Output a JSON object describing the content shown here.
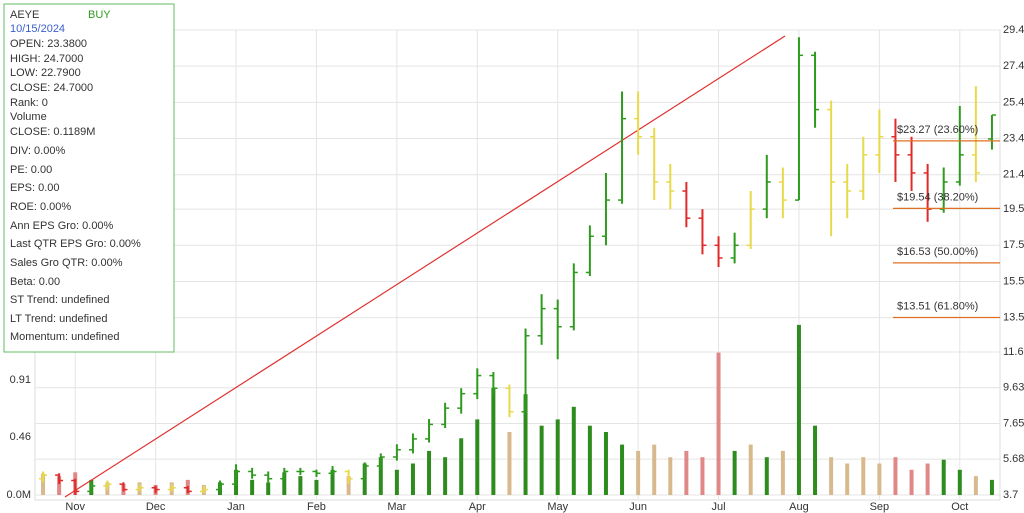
{
  "chart_data": {
    "type": "ohlc",
    "info_box": [
      "AEYE",
      "BUY",
      "10/15/2024",
      "OPEN: 23.3800",
      "HIGH: 24.7000",
      "LOW: 22.7900",
      "CLOSE: 24.7000",
      "Rank: 0",
      "Volume",
      "CLOSE: 0.1189M",
      "DIV: 0.00%",
      "PE: 0.00",
      "EPS: 0.00",
      "ROE: 0.00%",
      "Ann EPS Gro: 0.00%",
      "Last QTR EPS Gro: 0.00%",
      "Sales Gro QTR: 0.00%",
      "Beta: 0.00",
      "ST Trend: undefined",
      "LT Trend: undefined",
      "Momentum: undefined"
    ],
    "categories": [
      null,
      null,
      "Nov",
      null,
      null,
      null,
      null,
      "Dec",
      null,
      null,
      null,
      null,
      "Jan",
      null,
      null,
      null,
      null,
      "Feb",
      null,
      null,
      null,
      null,
      "Mar",
      null,
      null,
      null,
      null,
      "Apr",
      null,
      null,
      null,
      null,
      "May",
      null,
      null,
      null,
      null,
      "Jun",
      null,
      null,
      null,
      null,
      "Jul",
      null,
      null,
      null,
      null,
      "Aug",
      null,
      null,
      null,
      null,
      "Sep",
      null,
      null,
      null,
      null,
      "Oct",
      null,
      null
    ],
    "ohlc": [
      [
        4.6,
        5.0,
        4.4,
        4.8
      ],
      [
        4.8,
        4.9,
        4.3,
        4.5
      ],
      [
        4.5,
        4.6,
        3.7,
        3.9
      ],
      [
        3.9,
        4.4,
        3.8,
        4.2
      ],
      [
        4.2,
        4.5,
        4.0,
        4.3
      ],
      [
        4.3,
        4.4,
        3.9,
        4.0
      ],
      [
        4.0,
        4.3,
        3.9,
        4.1
      ],
      [
        4.1,
        4.2,
        3.8,
        4.0
      ],
      [
        4.0,
        4.3,
        3.9,
        4.1
      ],
      [
        4.1,
        4.2,
        3.8,
        3.9
      ],
      [
        3.9,
        4.2,
        3.8,
        4.0
      ],
      [
        4.0,
        4.5,
        3.9,
        4.3
      ],
      [
        4.3,
        5.4,
        4.2,
        5.0
      ],
      [
        5.0,
        5.2,
        4.6,
        4.8
      ],
      [
        4.8,
        5.0,
        4.4,
        4.6
      ],
      [
        4.6,
        5.2,
        4.5,
        5.0
      ],
      [
        5.0,
        5.2,
        4.8,
        5.0
      ],
      [
        5.0,
        5.1,
        4.7,
        4.9
      ],
      [
        4.9,
        5.3,
        4.8,
        5.0
      ],
      [
        5.0,
        5.1,
        4.3,
        4.6
      ],
      [
        4.6,
        5.5,
        4.5,
        5.3
      ],
      [
        5.3,
        6.0,
        5.1,
        5.8
      ],
      [
        5.8,
        6.5,
        5.6,
        6.2
      ],
      [
        6.2,
        7.1,
        6.0,
        6.8
      ],
      [
        6.8,
        7.9,
        6.6,
        7.6
      ],
      [
        7.6,
        8.8,
        7.4,
        8.5
      ],
      [
        8.5,
        9.6,
        8.2,
        9.3
      ],
      [
        9.3,
        10.7,
        9.0,
        10.3
      ],
      [
        10.3,
        10.5,
        9.2,
        9.6
      ],
      [
        9.6,
        9.8,
        8.0,
        8.3
      ],
      [
        8.3,
        12.9,
        8.2,
        12.5
      ],
      [
        12.5,
        14.8,
        12.0,
        14.0
      ],
      [
        14.0,
        14.5,
        11.2,
        13.0
      ],
      [
        13.0,
        16.5,
        12.8,
        16.0
      ],
      [
        16.0,
        18.6,
        15.8,
        18.0
      ],
      [
        18.0,
        21.5,
        17.5,
        20.0
      ],
      [
        20.0,
        26.0,
        19.8,
        24.5
      ],
      [
        24.5,
        26.0,
        22.5,
        23.5
      ],
      [
        23.5,
        24.0,
        20.0,
        21.0
      ],
      [
        21.0,
        22.0,
        19.5,
        20.5
      ],
      [
        20.5,
        21.0,
        18.5,
        19.0
      ],
      [
        19.0,
        19.5,
        17.0,
        17.5
      ],
      [
        17.5,
        18.0,
        16.3,
        16.8
      ],
      [
        16.8,
        18.2,
        16.5,
        17.5
      ],
      [
        17.5,
        20.5,
        17.3,
        19.5
      ],
      [
        19.5,
        22.5,
        19.0,
        21.0
      ],
      [
        21.0,
        21.8,
        19.0,
        20.0
      ],
      [
        20.0,
        29.0,
        20.0,
        28.0
      ],
      [
        28.0,
        28.2,
        24.0,
        25.0
      ],
      [
        25.0,
        25.5,
        18.0,
        21.0
      ],
      [
        21.0,
        22.0,
        19.0,
        20.5
      ],
      [
        20.5,
        23.5,
        20.0,
        22.5
      ],
      [
        22.5,
        25.0,
        21.5,
        23.5
      ],
      [
        23.5,
        24.5,
        21.0,
        22.5
      ],
      [
        22.5,
        23.5,
        20.5,
        21.5
      ],
      [
        21.5,
        22.0,
        18.8,
        19.5
      ],
      [
        19.5,
        21.8,
        19.3,
        21.0
      ],
      [
        21.0,
        25.2,
        20.8,
        22.5
      ],
      [
        22.5,
        26.3,
        21.0,
        21.5
      ],
      [
        23.38,
        24.7,
        22.79,
        24.7
      ]
    ],
    "bar_colors": [
      "#e8d94a",
      "#e02a2a",
      "#e02a2a",
      "#2e9a1e",
      "#e8d94a",
      "#e02a2a",
      "#e8d94a",
      "#e02a2a",
      "#e8d94a",
      "#e02a2a",
      "#e8d94a",
      "#2e9a1e",
      "#2e9a1e",
      "#2e9a1e",
      "#2e9a1e",
      "#2e9a1e",
      "#2e9a1e",
      "#2e9a1e",
      "#2e9a1e",
      "#e8d94a",
      "#2e9a1e",
      "#2e9a1e",
      "#2e9a1e",
      "#2e9a1e",
      "#2e9a1e",
      "#2e9a1e",
      "#2e9a1e",
      "#2e9a1e",
      "#2e9a1e",
      "#e8d94a",
      "#2e9a1e",
      "#2e9a1e",
      "#2e9a1e",
      "#2e9a1e",
      "#2e9a1e",
      "#2e9a1e",
      "#2e9a1e",
      "#e8d94a",
      "#e8d94a",
      "#e8d94a",
      "#e02a2a",
      "#e02a2a",
      "#e02a2a",
      "#2e9a1e",
      "#e8d94a",
      "#2e9a1e",
      "#e8d94a",
      "#2e9a1e",
      "#2e9a1e",
      "#e8d94a",
      "#e8d94a",
      "#e8d94a",
      "#e8d94a",
      "#e02a2a",
      "#e02a2a",
      "#e02a2a",
      "#2e9a1e",
      "#2e9a1e",
      "#e8d94a",
      "#2e9a1e"
    ],
    "volume": [
      0.17,
      0.15,
      0.18,
      0.12,
      0.1,
      0.09,
      0.1,
      0.08,
      0.1,
      0.12,
      0.08,
      0.1,
      0.2,
      0.12,
      0.1,
      0.18,
      0.15,
      0.12,
      0.2,
      0.15,
      0.25,
      0.3,
      0.2,
      0.25,
      0.35,
      0.3,
      0.45,
      0.6,
      0.85,
      0.5,
      0.8,
      0.55,
      0.6,
      0.7,
      0.55,
      0.5,
      0.4,
      0.35,
      0.4,
      0.3,
      0.35,
      0.3,
      1.13,
      0.35,
      0.4,
      0.3,
      0.35,
      1.35,
      0.55,
      0.3,
      0.25,
      0.3,
      0.25,
      0.3,
      0.2,
      0.25,
      0.28,
      0.2,
      0.15,
      0.12
    ],
    "volume_colors": [
      "#d8b98e",
      "#e08888",
      "#e08888",
      "#2e8b1e",
      "#d8b98e",
      "#e08888",
      "#d8b98e",
      "#e08888",
      "#d8b98e",
      "#e08888",
      "#d8b98e",
      "#2e8b1e",
      "#2e8b1e",
      "#2e8b1e",
      "#2e8b1e",
      "#2e8b1e",
      "#2e8b1e",
      "#2e8b1e",
      "#2e8b1e",
      "#d8b98e",
      "#2e8b1e",
      "#2e8b1e",
      "#2e8b1e",
      "#2e8b1e",
      "#2e8b1e",
      "#2e8b1e",
      "#2e8b1e",
      "#2e8b1e",
      "#2e8b1e",
      "#d8b98e",
      "#2e8b1e",
      "#2e8b1e",
      "#2e8b1e",
      "#2e8b1e",
      "#2e8b1e",
      "#2e8b1e",
      "#2e8b1e",
      "#d8b98e",
      "#d8b98e",
      "#d8b98e",
      "#e08888",
      "#e08888",
      "#e08888",
      "#2e8b1e",
      "#d8b98e",
      "#2e8b1e",
      "#d8b98e",
      "#2e8b1e",
      "#2e8b1e",
      "#d8b98e",
      "#d8b98e",
      "#d8b98e",
      "#d8b98e",
      "#e08888",
      "#e08888",
      "#e08888",
      "#2e8b1e",
      "#2e8b1e",
      "#d8b98e",
      "#2e8b1e"
    ],
    "ylim": [
      3.7,
      29.4
    ],
    "yticks": [
      29.4,
      27.4,
      25.4,
      23.4,
      21.4,
      19.5,
      17.5,
      15.5,
      13.5,
      11.6,
      9.63,
      7.65,
      5.68,
      3.7
    ],
    "vlim": [
      0,
      3.69
    ],
    "vticks": [
      {
        "value": 0,
        "label": "0.0M"
      },
      0.46,
      0.91
    ],
    "fib_levels": [
      {
        "value": 23.27,
        "label": "$23.27 (23.60%)"
      },
      {
        "value": 19.54,
        "label": "$19.54 (38.20%)"
      },
      {
        "value": 16.53,
        "label": "$16.53 (50.00%)"
      },
      {
        "value": 13.51,
        "label": "$13.51 (61.80%)"
      }
    ],
    "fib_color": "#e07020",
    "grid": true
  }
}
